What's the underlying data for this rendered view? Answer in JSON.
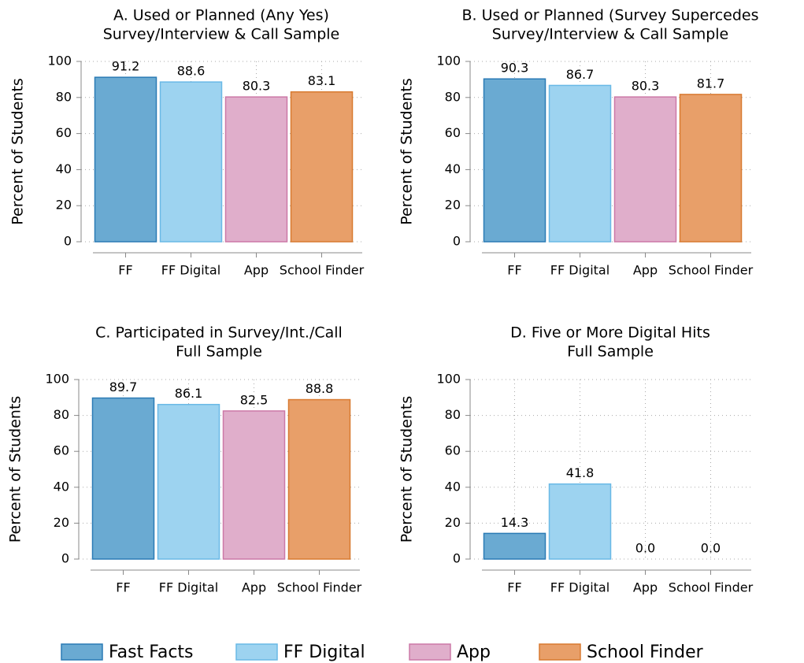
{
  "chart_data": [
    {
      "type": "bar",
      "title": "A. Used or Planned (Any Yes)",
      "subtitle": "Survey/Interview & Call Sample",
      "ylabel": "Percent of Students",
      "categories": [
        "FF",
        "FF Digital",
        "App",
        "School Finder"
      ],
      "values": [
        91.2,
        88.6,
        80.3,
        83.1
      ],
      "ylim": [
        0,
        100
      ],
      "yticks": [
        0,
        20,
        40,
        60,
        80,
        100
      ],
      "grid": true
    },
    {
      "type": "bar",
      "title": "B. Used or Planned (Survey Supercedes",
      "subtitle": "Survey/Interview & Call Sample",
      "ylabel": "Percent of Students",
      "categories": [
        "FF",
        "FF Digital",
        "App",
        "School Finder"
      ],
      "values": [
        90.3,
        86.7,
        80.3,
        81.7
      ],
      "ylim": [
        0,
        100
      ],
      "yticks": [
        0,
        20,
        40,
        60,
        80,
        100
      ],
      "grid": true
    },
    {
      "type": "bar",
      "title": "C. Participated in Survey/Int./Call",
      "subtitle": "Full Sample",
      "ylabel": "Percent of Students",
      "categories": [
        "FF",
        "FF Digital",
        "App",
        "School Finder"
      ],
      "values": [
        89.7,
        86.1,
        82.5,
        88.8
      ],
      "ylim": [
        0,
        100
      ],
      "yticks": [
        0,
        20,
        40,
        60,
        80,
        100
      ],
      "grid": true
    },
    {
      "type": "bar",
      "title": "D. Five or More Digital Hits",
      "subtitle": "Full Sample",
      "ylabel": "Percent of Students",
      "categories": [
        "FF",
        "FF Digital",
        "App",
        "School Finder"
      ],
      "values": [
        14.3,
        41.8,
        0,
        0
      ],
      "value_labels": [
        "14.3",
        "41.8",
        "0.0",
        "0.0"
      ],
      "ylim": [
        0,
        100
      ],
      "yticks": [
        0,
        20,
        40,
        60,
        80,
        100
      ],
      "grid": true
    }
  ],
  "legend": {
    "entries": [
      {
        "name": "Fast Facts",
        "color": "#6aaad2",
        "edge": "#2b7bb5"
      },
      {
        "name": "FF Digital",
        "color": "#9dd3f0",
        "edge": "#6ab9e6"
      },
      {
        "name": "App",
        "color": "#e0aecb",
        "edge": "#cc79a7"
      },
      {
        "name": "School Finder",
        "color": "#e89f69",
        "edge": "#d87a30"
      }
    ]
  }
}
